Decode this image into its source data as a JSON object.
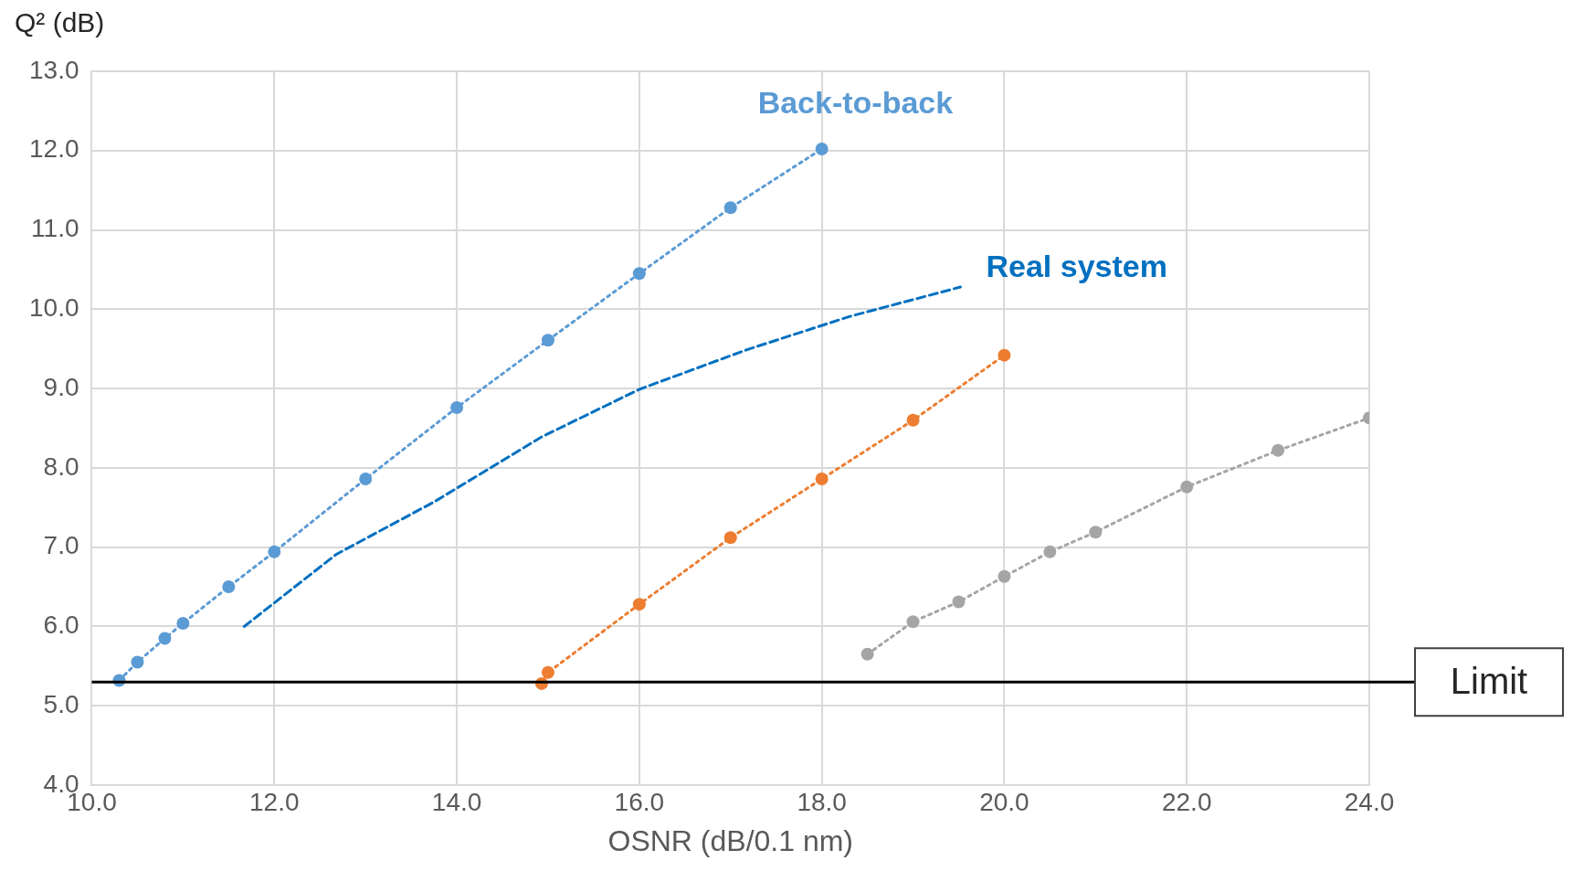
{
  "chart_data": {
    "type": "line",
    "xlabel": "OSNR (dB/0.1 nm)",
    "ylabel": "Q² (dB)",
    "xlim": [
      10,
      24
    ],
    "xticks": [
      {
        "value": 10,
        "label": "10.0"
      },
      {
        "value": 12,
        "label": "12.0"
      },
      {
        "value": 14,
        "label": "14.0"
      },
      {
        "value": 16,
        "label": "16.0"
      },
      {
        "value": 18,
        "label": "18.0"
      },
      {
        "value": 20,
        "label": "20.0"
      },
      {
        "value": 22,
        "label": "22.0"
      },
      {
        "value": 24,
        "label": "24.0"
      }
    ],
    "ylim": [
      4,
      13
    ],
    "yticks": [
      {
        "value": 4,
        "label": "4.0"
      },
      {
        "value": 5,
        "label": "5.0"
      },
      {
        "value": 6,
        "label": "6.0"
      },
      {
        "value": 7,
        "label": "7.0"
      },
      {
        "value": 8,
        "label": "8.0"
      },
      {
        "value": 9,
        "label": "9.0"
      },
      {
        "value": 10,
        "label": "10.0"
      },
      {
        "value": 11,
        "label": "11.0"
      },
      {
        "value": 12,
        "label": "12.0"
      },
      {
        "value": 13,
        "label": "13.0"
      }
    ],
    "grid": true,
    "legend": false,
    "series": [
      {
        "name": "Back-to-back",
        "color": "#5b9bd5",
        "marker": "circle",
        "line_style": "dotted",
        "x": [
          10.3,
          10.5,
          10.8,
          11,
          11.5,
          12,
          13,
          14,
          15,
          16,
          17,
          18
        ],
        "values": [
          5.32,
          5.55,
          5.85,
          6.04,
          6.5,
          6.94,
          7.86,
          8.76,
          9.61,
          10.45,
          11.28,
          12.02
        ]
      },
      {
        "name": "Real system",
        "color": "#0070c0",
        "marker": "none",
        "line_style": "dashed",
        "x": [
          11.67,
          12.68,
          13.75,
          14.93,
          16,
          17.18,
          18.31,
          19.52
        ],
        "values": [
          6.0,
          6.91,
          7.57,
          8.39,
          8.99,
          9.49,
          9.91,
          10.28
        ]
      },
      {
        "color": "#ed7d31",
        "marker": "circle",
        "line_style": "dotted",
        "x": [
          14.93,
          15,
          16,
          17,
          18,
          19,
          20
        ],
        "values": [
          5.28,
          5.42,
          6.28,
          7.12,
          7.86,
          8.6,
          9.42
        ]
      },
      {
        "color": "#a5a5a5",
        "marker": "circle",
        "line_style": "dotted",
        "x": [
          18.5,
          19,
          19.5,
          20,
          20.5,
          21,
          22,
          23,
          24
        ],
        "values": [
          5.65,
          6.06,
          6.31,
          6.63,
          6.94,
          7.19,
          7.76,
          8.22,
          8.63
        ]
      }
    ],
    "ref_lines": [
      {
        "axis": "y",
        "value": 5.3,
        "label": "Limit",
        "color": "#000000"
      }
    ]
  }
}
